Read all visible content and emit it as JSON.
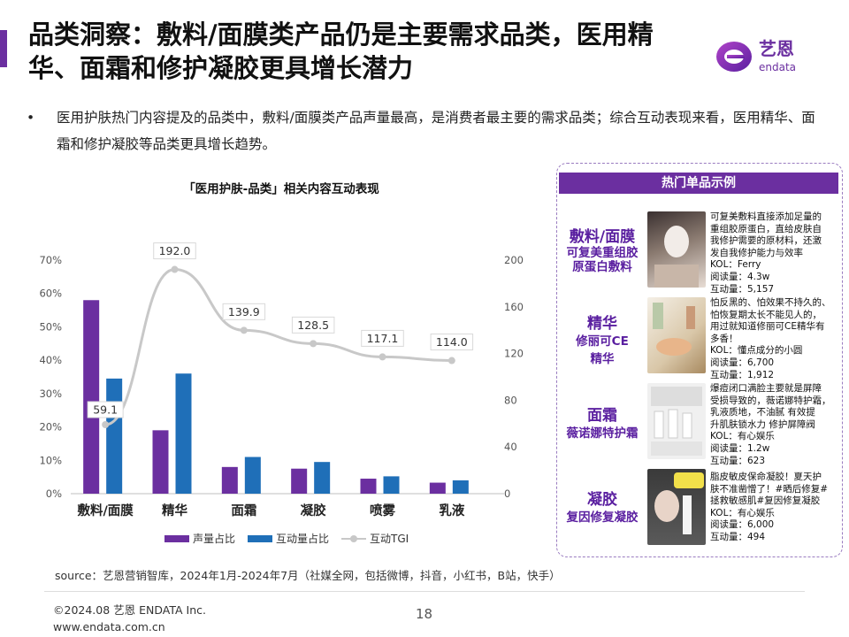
{
  "title": "品类洞察：敷料/面膜类产品仍是主要需求品类，医用精华、面霜和修护凝胶更具增长潜力",
  "logo": {
    "name": "艺恩",
    "sub": "endata"
  },
  "bullet": {
    "marker": "•",
    "text": "医用护肤热门内容提及的品类中，敷料/面膜类产品声量最高，是消费者最主要的需求品类；综合互动表现来看，医用精华、面霜和修护凝胶等品类更具增长趋势。"
  },
  "chart_data": {
    "type": "bar",
    "title": "「医用护肤-品类」相关内容互动表现",
    "categories": [
      "敷料/面膜",
      "精华",
      "面霜",
      "凝胶",
      "喷雾",
      "乳液"
    ],
    "series": [
      {
        "name": "声量占比",
        "kind": "bar",
        "axis": "left",
        "color": "#6b2fa0",
        "values": [
          0.58,
          0.19,
          0.08,
          0.075,
          0.045,
          0.033
        ]
      },
      {
        "name": "互动量占比",
        "kind": "bar",
        "axis": "left",
        "color": "#1f6fb8",
        "values": [
          0.345,
          0.36,
          0.11,
          0.095,
          0.052,
          0.04
        ]
      },
      {
        "name": "互动TGI",
        "kind": "line",
        "axis": "right",
        "color": "#c8c8c8",
        "values": [
          59.1,
          192.0,
          139.9,
          128.5,
          117.1,
          114.0
        ]
      }
    ],
    "data_labels": [
      "59.1",
      "192.0",
      "139.9",
      "128.5",
      "117.1",
      "114.0"
    ],
    "y_left": {
      "min": 0,
      "max": 0.7,
      "ticks": [
        "0%",
        "10%",
        "20%",
        "30%",
        "40%",
        "50%",
        "60%",
        "70%"
      ]
    },
    "y_right": {
      "min": 0,
      "max": 200,
      "ticks": [
        "0",
        "40",
        "80",
        "120",
        "160",
        "200"
      ]
    },
    "legend": "bottom"
  },
  "panel": {
    "header": "热门单品示例",
    "items": [
      {
        "name1": "敷料/面膜",
        "name2": "可复美重组胶原蛋白敷料",
        "desc": [
          "可复美敷料直接添加足量的",
          "重组胶原蛋白，直给皮肤自",
          "我修护需要的原材料，还激",
          "发自我修护能力与效率",
          "KOL：Ferry",
          "阅读量：4.3w",
          "互动量：5,157"
        ]
      },
      {
        "name1": "精华",
        "name2": "修丽可CE精华",
        "desc": [
          "怕反黑的、怕效果不持久的、",
          "怕恢复期太长不能见人的，",
          "用过就知道修丽可CE精华有",
          "多香！",
          "KOL：懂点成分的小圆",
          "阅读量：6,700",
          "互动量：1,912"
        ]
      },
      {
        "name1": "面霜",
        "name2": "薇诺娜特护霜",
        "desc": [
          "爆痘闭口满脸主要就是屏障",
          "受损导致的，薇诺娜特护霜，",
          "乳液质地，不油腻  有效提",
          "升肌肤锁水力  修护屏障阀",
          "KOL：有心娱乐",
          "阅读量：1.2w",
          "互动量：623"
        ]
      },
      {
        "name1": "凝胶",
        "name2": "复因修复凝胶",
        "desc": [
          "脂皮敏皮保命凝胶！夏天护",
          "肤不准凿憎了！#晒后修复#",
          "拯救敏感肌#复因修复凝胶",
          "KOL：有心娱乐",
          "阅读量：6,000",
          "互动量：494"
        ]
      }
    ]
  },
  "source": "source：艺恩营销智库，2024年1月-2024年7月（社媒全网，包括微博，抖音，小红书，B站，快手）",
  "footer": {
    "copyright": "©2024.08  艺恩  ENDATA  Inc.",
    "website": "www.endata.com.cn",
    "page": "18"
  }
}
